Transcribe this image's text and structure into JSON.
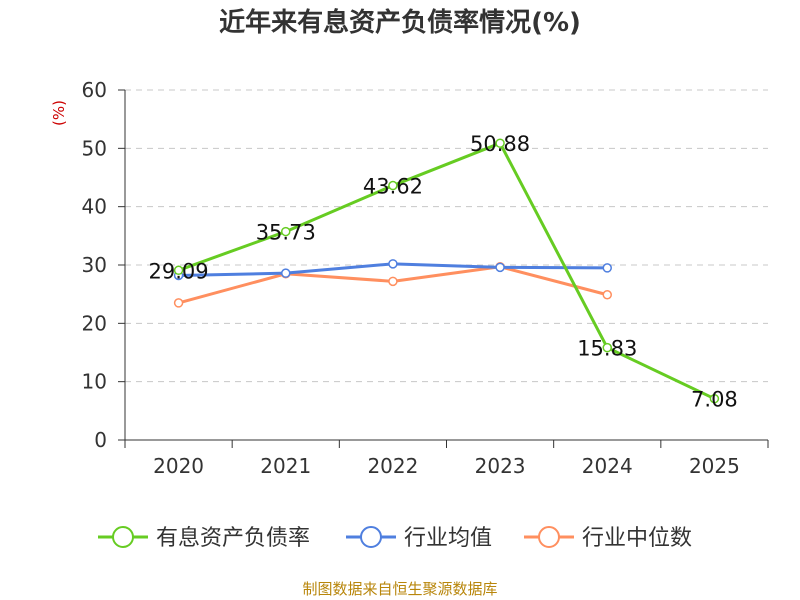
{
  "title": "近年来有息资产负债率情况(%)",
  "source": "制图数据来自恒生聚源数据库",
  "chart_data": {
    "type": "line",
    "title": "近年来有息资产负债率情况(%)",
    "unit_label": "(%)",
    "xlabel": "",
    "ylabel": "(%)",
    "categories": [
      "2020",
      "2021",
      "2022",
      "2023",
      "2024",
      "2025"
    ],
    "ylim": [
      0,
      60
    ],
    "yticks": [
      0,
      10,
      20,
      30,
      40,
      50,
      60
    ],
    "grid": true,
    "legend_position": "bottom",
    "series": [
      {
        "name": "有息资产负债率",
        "color": "#66cc22",
        "values": [
          29.09,
          35.73,
          43.62,
          50.88,
          15.83,
          7.08
        ],
        "labels": [
          "29.09",
          "35.73",
          "43.62",
          "50.88",
          "15.83",
          "7.08"
        ]
      },
      {
        "name": "行业均值",
        "color": "#4f7fdf",
        "values": [
          28.2,
          28.6,
          30.2,
          29.6,
          29.5,
          null
        ],
        "labels": null
      },
      {
        "name": "行业中位数",
        "color": "#ff8f5f",
        "values": [
          23.5,
          28.5,
          27.2,
          29.7,
          24.9,
          null
        ],
        "labels": null
      }
    ]
  }
}
